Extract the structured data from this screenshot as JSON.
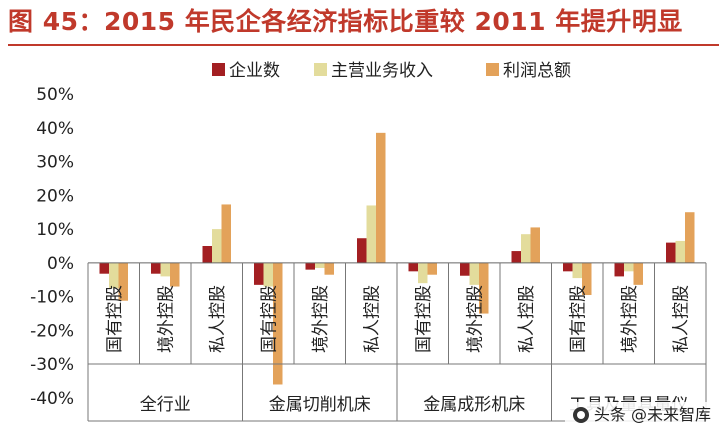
{
  "page": {
    "title": "图 45：2015 年民企各经济指标比重较 2011 年提升明显",
    "watermark": "头条 @未来智库"
  },
  "colors": {
    "title": "#c0392b",
    "series": [
      "#a31f22",
      "#e3dc9c",
      "#e3a25a"
    ]
  },
  "chart_data": {
    "type": "bar",
    "title": "",
    "series_names": [
      "企业数",
      "主营业务收入",
      "利润总额"
    ],
    "groups": [
      "全行业",
      "金属切削机床",
      "金属成形机床",
      "工具及量具量仪"
    ],
    "categories": [
      "国有控股",
      "境外控股",
      "私人控股"
    ],
    "tick_labels": [
      "50%",
      "40%",
      "30%",
      "20%",
      "10%",
      "0%",
      "-10%",
      "-20%",
      "-30%",
      "-40%"
    ],
    "ylim": [
      -40,
      50
    ],
    "ylabel": "",
    "unit": "%",
    "values": [
      [
        [
          -3.2,
          -7.5,
          -11.2
        ],
        [
          -3.2,
          -4.0,
          -7.0
        ],
        [
          5.0,
          10.0,
          17.3
        ]
      ],
      [
        [
          -6.5,
          -7.0,
          -36.0
        ],
        [
          -2.0,
          -1.5,
          -3.5
        ],
        [
          7.3,
          17.0,
          38.5
        ]
      ],
      [
        [
          -2.5,
          -6.0,
          -3.5
        ],
        [
          -3.8,
          -6.5,
          -15.0
        ],
        [
          3.5,
          8.5,
          10.5
        ]
      ],
      [
        [
          -2.5,
          -4.5,
          -9.5
        ],
        [
          -4.0,
          -2.5,
          -6.5
        ],
        [
          6.0,
          6.5,
          15.0
        ]
      ]
    ]
  }
}
